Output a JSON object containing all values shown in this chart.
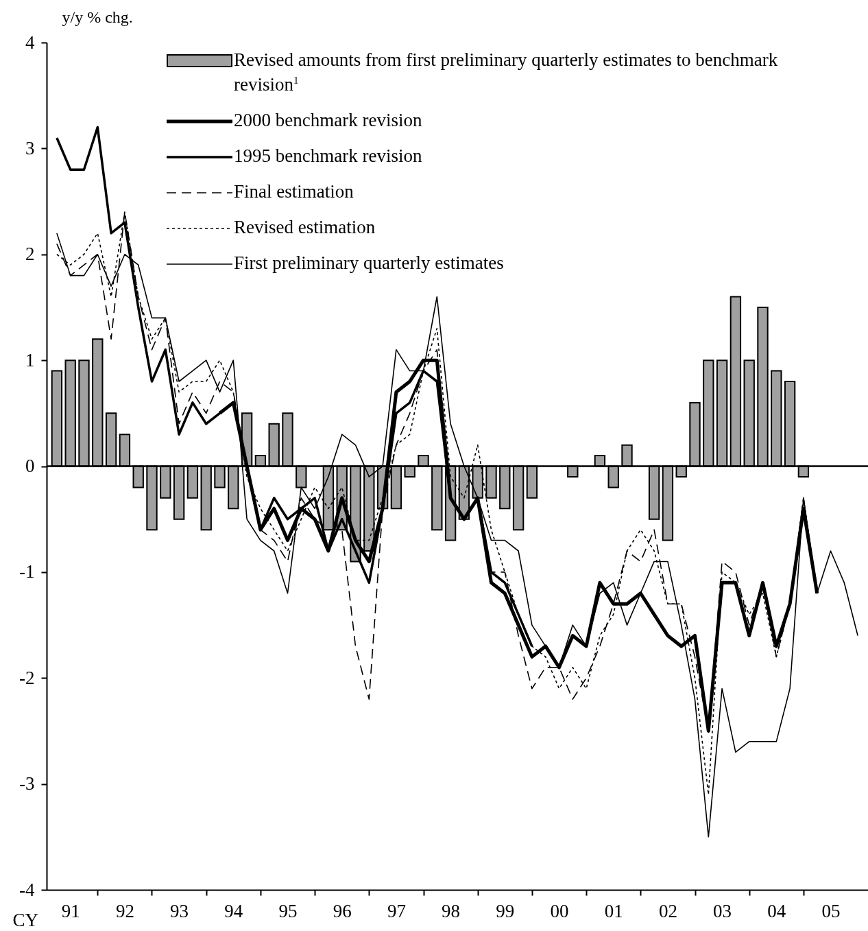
{
  "chart_data": {
    "type": "bar",
    "ylabel": "y/y % chg.",
    "xlabel": "CY",
    "categories": [
      null,
      "91",
      null,
      null,
      null,
      "92",
      null,
      null,
      null,
      "93",
      null,
      null,
      null,
      "94",
      null,
      null,
      null,
      "95",
      null,
      null,
      null,
      "96",
      null,
      null,
      null,
      "97",
      null,
      null,
      null,
      "98",
      null,
      null,
      null,
      "99",
      null,
      null,
      null,
      "00",
      null,
      null,
      null,
      "01",
      null,
      null,
      null,
      "02",
      null,
      null,
      null,
      "03",
      null,
      null,
      null,
      "04",
      null,
      null,
      null,
      "05",
      null,
      null
    ],
    "ylim": [
      -4,
      4
    ],
    "yticks": [
      -4,
      -3,
      -2,
      -1,
      0,
      1,
      2,
      3,
      4
    ],
    "grid": false,
    "legend": "top",
    "ref_lines": [
      {
        "axis": "y",
        "value": 0
      }
    ],
    "series": [
      {
        "name": "Revised amounts from first preliminary quarterly estimates to benchmark revision$^{1}$",
        "color": "#a0a0a0",
        "values": [
          0.9,
          1.0,
          1.0,
          1.2,
          0.5,
          0.3,
          -0.2,
          -0.6,
          -0.3,
          -0.5,
          -0.3,
          -0.6,
          -0.2,
          -0.4,
          0.5,
          0.1,
          0.4,
          0.5,
          -0.2,
          null,
          -0.6,
          -0.6,
          -0.9,
          -0.8,
          -0.4,
          -0.4,
          -0.1,
          0.1,
          -0.6,
          -0.7,
          -0.5,
          -0.3,
          -0.3,
          -0.4,
          -0.6,
          -0.3,
          null,
          null,
          -0.1,
          null,
          0.1,
          -0.2,
          0.2,
          null,
          -0.5,
          -0.7,
          -0.1,
          0.6,
          1.0,
          1.0,
          1.6,
          1.0,
          1.5,
          0.9,
          0.8,
          -0.1,
          null,
          null,
          null,
          null
        ]
      },
      {
        "type": "line",
        "name": "2000 benchmark revision",
        "color": "#000000",
        "line_style": "solid",
        "values": [
          null,
          null,
          null,
          null,
          null,
          null,
          null,
          null,
          null,
          null,
          null,
          null,
          0.5,
          0.6,
          0.0,
          -0.6,
          -0.4,
          -0.7,
          -0.4,
          -0.5,
          -0.8,
          -0.3,
          -0.7,
          -0.9,
          -0.4,
          0.7,
          0.8,
          1.0,
          1.0,
          -0.3,
          -0.5,
          -0.3,
          -1.1,
          -1.2,
          -1.5,
          -1.8,
          -1.7,
          -1.9,
          -1.6,
          -1.7,
          -1.1,
          -1.3,
          -1.3,
          -1.2,
          -1.4,
          -1.6,
          -1.7,
          -1.6,
          -2.5,
          -1.1,
          -1.1,
          -1.6,
          -1.1,
          -1.7,
          -1.3,
          -0.4,
          -1.2,
          null,
          null,
          null
        ]
      },
      {
        "type": "line",
        "name": "1995 benchmark revision",
        "color": "#000000",
        "line_style": "solid",
        "values": [
          3.1,
          2.8,
          2.8,
          3.2,
          2.2,
          2.3,
          1.5,
          0.8,
          1.1,
          0.3,
          0.6,
          0.4,
          0.5,
          0.6,
          0.0,
          -0.6,
          -0.3,
          -0.5,
          -0.4,
          -0.3,
          -0.8,
          -0.5,
          -0.8,
          -1.1,
          -0.4,
          0.5,
          0.6,
          0.9,
          0.8,
          -0.3,
          -0.5,
          -0.3,
          -1.0,
          -1.1,
          -1.4,
          -1.7,
          null,
          null,
          null,
          null,
          null,
          null,
          null,
          null,
          null,
          null,
          null,
          null,
          null,
          null,
          null,
          null,
          null,
          null,
          null,
          null,
          null,
          null,
          null,
          null
        ]
      },
      {
        "type": "line",
        "name": "Final estimation",
        "color": "#000000",
        "line_style": "dashed",
        "values": [
          2.1,
          1.8,
          1.9,
          2.0,
          1.2,
          2.4,
          1.6,
          1.1,
          1.4,
          0.4,
          0.7,
          0.5,
          0.8,
          0.7,
          0.0,
          -0.6,
          -0.7,
          -0.9,
          -0.3,
          -0.5,
          -0.6,
          -0.6,
          -1.7,
          -2.2,
          -0.4,
          0.2,
          0.5,
          0.9,
          1.1,
          -0.3,
          -0.5,
          -0.3,
          -1.0,
          -1.0,
          -1.6,
          -2.1,
          -1.9,
          -1.9,
          -2.2,
          -2.0,
          -1.7,
          -1.3,
          -0.8,
          -0.9,
          -0.6,
          -1.3,
          -1.3,
          -1.8,
          -2.5,
          -0.9,
          -1.0,
          -1.5,
          -1.1,
          -1.8,
          -1.3,
          -0.3,
          -1.2,
          null,
          null,
          null
        ]
      },
      {
        "type": "line",
        "name": "Revised estimation",
        "color": "#000000",
        "line_style": "dotted",
        "values": [
          2.0,
          1.9,
          2.0,
          2.2,
          1.6,
          2.4,
          1.6,
          1.2,
          1.4,
          0.7,
          0.8,
          0.8,
          1.0,
          0.7,
          -0.1,
          -0.4,
          -0.6,
          -0.8,
          -0.5,
          -0.2,
          -0.4,
          -0.2,
          -0.7,
          -0.7,
          -0.3,
          0.2,
          0.3,
          0.9,
          1.3,
          -0.1,
          -0.3,
          0.2,
          -0.6,
          -1.0,
          -1.4,
          -1.7,
          -1.8,
          -2.1,
          -1.9,
          -2.1,
          -1.6,
          -1.4,
          -0.8,
          -0.6,
          -0.8,
          -1.3,
          -1.3,
          -2.0,
          -3.1,
          -1.0,
          -1.1,
          -1.4,
          -1.2,
          -1.8,
          -1.3,
          -0.3,
          -1.2,
          null,
          null,
          null
        ]
      },
      {
        "type": "line",
        "name": "First preliminary quarterly estimates",
        "color": "#000000",
        "line_style": "solid",
        "values": [
          2.2,
          1.8,
          1.8,
          2.0,
          1.7,
          2.0,
          1.9,
          1.4,
          1.4,
          0.8,
          0.9,
          1.0,
          0.7,
          1.0,
          -0.5,
          -0.7,
          -0.8,
          -1.2,
          -0.2,
          -0.4,
          -0.1,
          0.3,
          0.2,
          -0.1,
          0.0,
          1.1,
          0.9,
          0.9,
          1.6,
          0.4,
          0.0,
          -0.3,
          -0.7,
          -0.7,
          -0.8,
          -1.5,
          -1.7,
          -1.9,
          -1.5,
          -1.7,
          -1.2,
          -1.1,
          -1.5,
          -1.2,
          -0.9,
          -0.9,
          -1.5,
          -2.2,
          -3.5,
          -2.1,
          -2.7,
          -2.6,
          -2.6,
          -2.6,
          -2.1,
          -0.3,
          -1.2,
          -0.8,
          -1.1,
          -1.6
        ]
      }
    ]
  }
}
